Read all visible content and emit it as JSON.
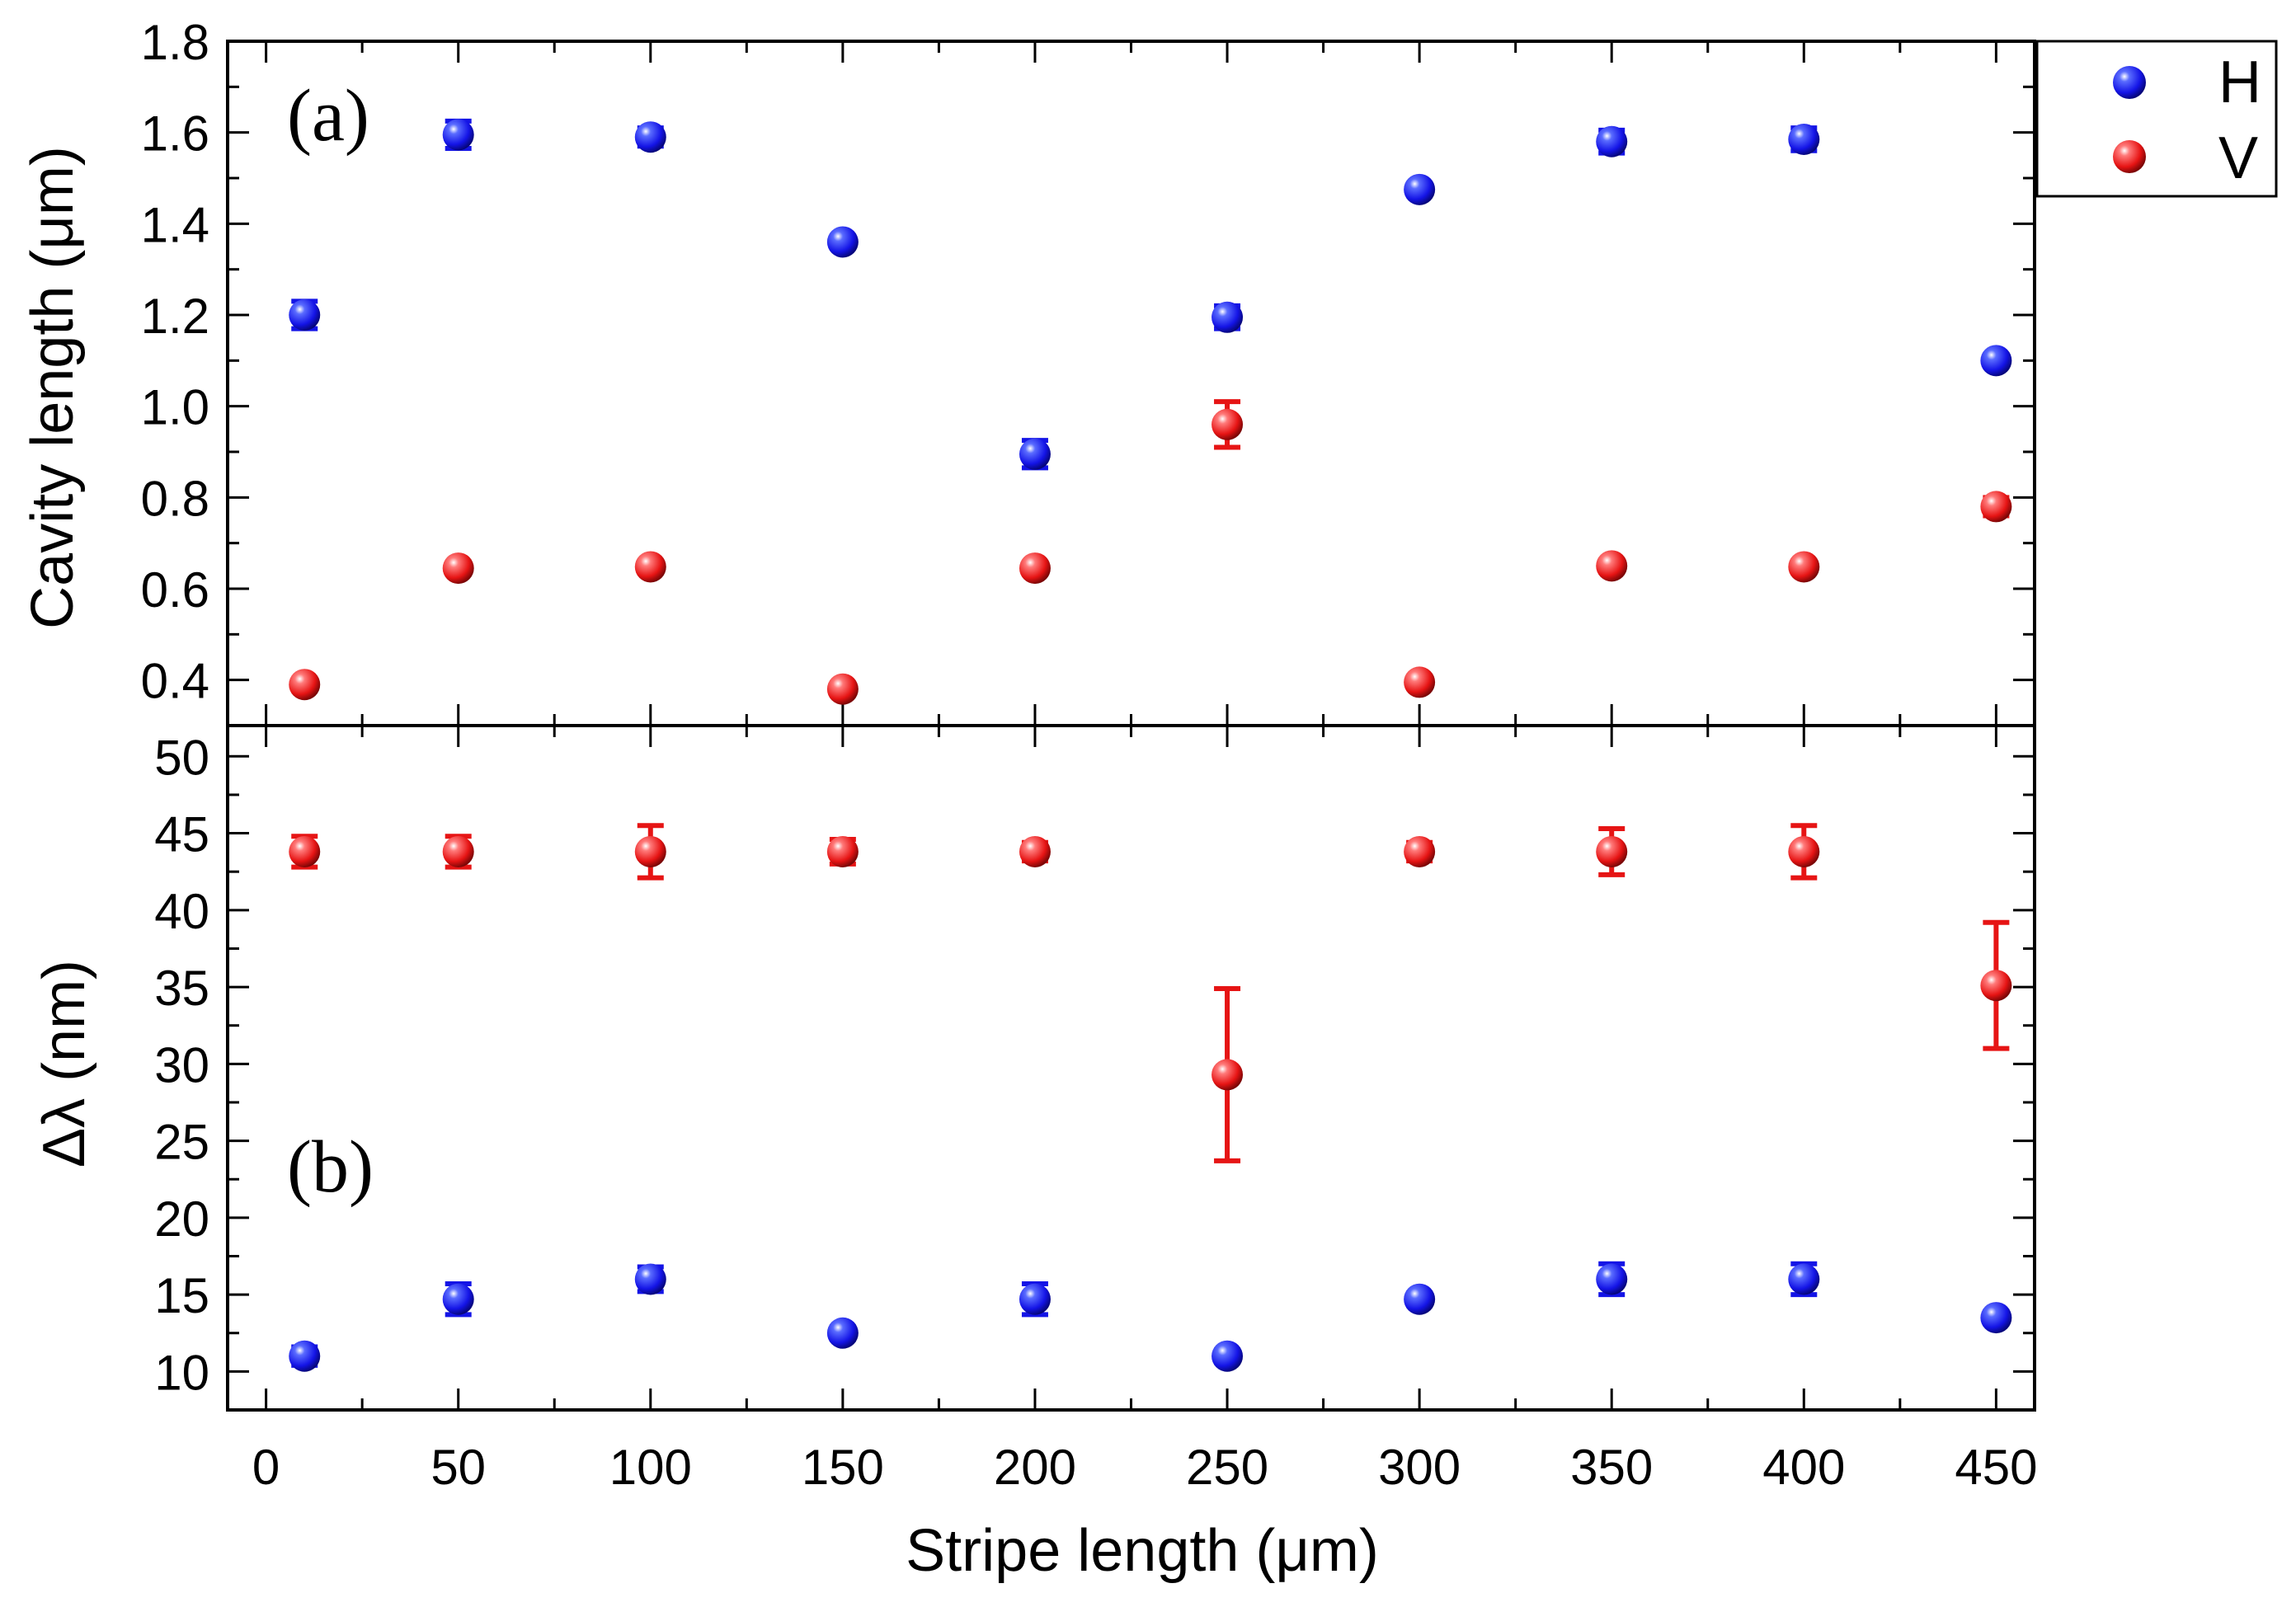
{
  "chart_data": {
    "type": "scatter",
    "x_label": "Stripe length (μm)",
    "x_range": [
      -10,
      460
    ],
    "x_ticks": [
      0,
      50,
      100,
      150,
      200,
      250,
      300,
      350,
      400,
      450
    ],
    "x_tick_labels": [
      "0",
      "50",
      "100",
      "150",
      "200",
      "250",
      "300",
      "350",
      "400",
      "450"
    ],
    "x_minor_step": 25,
    "legend": {
      "position": "top-right, outside plot",
      "entries": [
        {
          "name": "H",
          "color": "#1414e6"
        },
        {
          "name": "V",
          "color": "#e61414"
        }
      ]
    },
    "panels": [
      {
        "panel_label": "(a)",
        "y_label": "Cavity length (μm)",
        "y_range": [
          0.3,
          1.8
        ],
        "y_ticks": [
          0.4,
          0.6,
          0.8,
          1.0,
          1.2,
          1.4,
          1.6,
          1.8
        ],
        "y_tick_labels": [
          "0.4",
          "0.6",
          "0.8",
          "1.0",
          "1.2",
          "1.4",
          "1.6",
          "1.8"
        ],
        "y_minor_step": 0.1,
        "series": [
          {
            "name": "H",
            "color": "#1414e6",
            "points": [
              {
                "x": 10,
                "y": 1.2,
                "err": 0.03
              },
              {
                "x": 50,
                "y": 1.595,
                "err": 0.03
              },
              {
                "x": 100,
                "y": 1.59,
                "err": 0.02
              },
              {
                "x": 150,
                "y": 1.36,
                "err": 0.01
              },
              {
                "x": 200,
                "y": 0.895,
                "err": 0.03
              },
              {
                "x": 250,
                "y": 1.195,
                "err": 0.025
              },
              {
                "x": 300,
                "y": 1.475,
                "err": 0.01
              },
              {
                "x": 350,
                "y": 1.58,
                "err": 0.025
              },
              {
                "x": 400,
                "y": 1.585,
                "err": 0.025
              },
              {
                "x": 450,
                "y": 1.1,
                "err": 0.01
              }
            ]
          },
          {
            "name": "V",
            "color": "#e61414",
            "points": [
              {
                "x": 10,
                "y": 0.39,
                "err": 0.01
              },
              {
                "x": 50,
                "y": 0.645,
                "err": 0.01
              },
              {
                "x": 100,
                "y": 0.648,
                "err": 0.01
              },
              {
                "x": 150,
                "y": 0.38,
                "err": 0.01
              },
              {
                "x": 200,
                "y": 0.645,
                "err": 0.01
              },
              {
                "x": 250,
                "y": 0.96,
                "err": 0.05
              },
              {
                "x": 300,
                "y": 0.395,
                "err": 0.01
              },
              {
                "x": 350,
                "y": 0.65,
                "err": 0.01
              },
              {
                "x": 400,
                "y": 0.648,
                "err": 0.01
              },
              {
                "x": 450,
                "y": 0.78,
                "err": 0.02
              }
            ]
          }
        ]
      },
      {
        "panel_label": "(b)",
        "y_label": "Δλ (nm)",
        "y_range": [
          7.5,
          52
        ],
        "y_ticks": [
          10,
          15,
          20,
          25,
          30,
          35,
          40,
          45,
          50
        ],
        "y_tick_labels": [
          "10",
          "15",
          "20",
          "25",
          "30",
          "35",
          "40",
          "45",
          "50"
        ],
        "y_minor_step": 2.5,
        "series": [
          {
            "name": "H",
            "color": "#1414e6",
            "points": [
              {
                "x": 10,
                "y": 11.0,
                "err": 0.6
              },
              {
                "x": 50,
                "y": 14.7,
                "err": 1.0
              },
              {
                "x": 100,
                "y": 16.0,
                "err": 0.8
              },
              {
                "x": 150,
                "y": 12.5,
                "err": 0.4
              },
              {
                "x": 200,
                "y": 14.7,
                "err": 1.0
              },
              {
                "x": 250,
                "y": 11.0,
                "err": 0.4
              },
              {
                "x": 300,
                "y": 14.7,
                "err": 0.4
              },
              {
                "x": 350,
                "y": 16.0,
                "err": 1.0
              },
              {
                "x": 400,
                "y": 16.0,
                "err": 1.0
              },
              {
                "x": 450,
                "y": 13.5,
                "err": 0.4
              }
            ]
          },
          {
            "name": "V",
            "color": "#e61414",
            "points": [
              {
                "x": 10,
                "y": 43.8,
                "err": 1.0
              },
              {
                "x": 50,
                "y": 43.8,
                "err": 1.0
              },
              {
                "x": 100,
                "y": 43.8,
                "err": 1.7
              },
              {
                "x": 150,
                "y": 43.8,
                "err": 0.8
              },
              {
                "x": 200,
                "y": 43.8,
                "err": 0.6
              },
              {
                "x": 250,
                "y": 29.3,
                "err": 5.6
              },
              {
                "x": 300,
                "y": 43.8,
                "err": 0.6
              },
              {
                "x": 350,
                "y": 43.8,
                "err": 1.5
              },
              {
                "x": 400,
                "y": 43.8,
                "err": 1.7
              },
              {
                "x": 450,
                "y": 35.1,
                "err": 4.1
              }
            ]
          }
        ]
      }
    ]
  }
}
